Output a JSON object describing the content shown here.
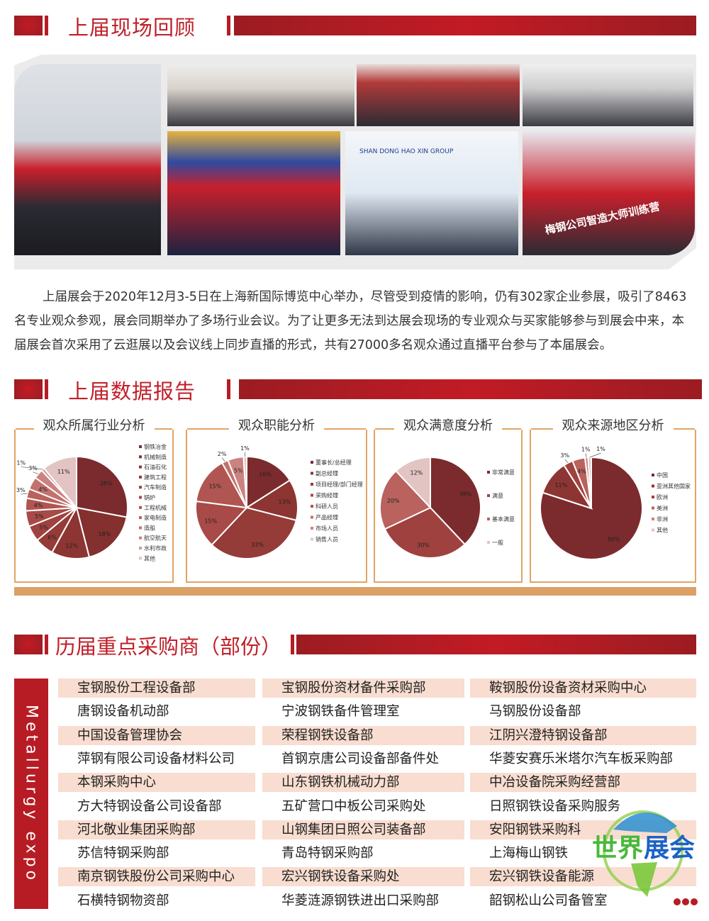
{
  "sections": {
    "review_title": "上届现场回顾",
    "data_title": "上届数据报告",
    "buyers_title": "历届重点采购商（部份）"
  },
  "photos": {
    "booth_sign": "SHAN DONG HAO XIN GROUP",
    "banner": "梅钢公司智造大师训练营"
  },
  "paragraph": "上届展会于2020年12月3-5日在上海新国际博览中心举办，尽管受到疫情的影响，仍有302家企业参展，吸引了8463名专业观众参观，展会同期举办了多场行业会议。为了让更多无法到达展会现场的专业观众与买家能够参与到展会中来，本届展会首次采用了云逛展以及会议线上同步直播的形式，共有27000多名观众通过直播平台参与了本届展会。",
  "chart_data": [
    {
      "type": "pie",
      "title": "观众所属行业分析",
      "categories": [
        "钢铁冶金",
        "机械制造",
        "石油石化",
        "建筑工程",
        "汽车制造",
        "锅炉",
        "工程机械",
        "家电制造",
        "造船",
        "航空航天",
        "水利市政",
        "其他"
      ],
      "values": [
        28,
        18,
        12,
        6,
        5,
        5,
        4,
        3,
        4,
        3,
        1,
        11
      ],
      "unit": "%",
      "legend": "right"
    },
    {
      "type": "pie",
      "title": "观众职能分析",
      "categories": [
        "董事长/总经理",
        "副总经理",
        "项目经理/部门经理",
        "采购经理",
        "科研人员",
        "产品经理",
        "市场人员",
        "销售人员"
      ],
      "values": [
        16,
        13,
        33,
        15,
        15,
        2,
        5,
        1
      ],
      "unit": "%",
      "legend": "right"
    },
    {
      "type": "pie",
      "title": "观众满意度分析",
      "categories": [
        "非常满意",
        "满意",
        "基本满意",
        "一般"
      ],
      "values": [
        38,
        30,
        20,
        12
      ],
      "unit": "%",
      "legend": "right"
    },
    {
      "type": "pie",
      "title": "观众来源地区分析",
      "categories": [
        "中国",
        "亚洲其他国家",
        "欧洲",
        "美洲",
        "非洲",
        "其他"
      ],
      "values": [
        80,
        11,
        3,
        4,
        1,
        1
      ],
      "unit": "%",
      "legend": "right"
    }
  ],
  "colors": {
    "accent": "#b71c25",
    "row_alt": "#f8ddd0",
    "border": "#e3a463",
    "pie": [
      "#7b2b2d",
      "#83302f",
      "#8c3533",
      "#953b38",
      "#9f423f",
      "#a84a47",
      "#b05551",
      "#b9625e",
      "#c3716d",
      "#cb8280",
      "#d59b99",
      "#e2c4c3"
    ]
  },
  "buyers": {
    "side_label": "Metallurgy expo",
    "rows": [
      [
        "宝钢股份工程设备部",
        "宝钢股份资材备件采购部",
        "鞍钢股份设备资材采购中心"
      ],
      [
        "唐钢设备机动部",
        "宁波钢铁备件管理室",
        "马钢股份设备部"
      ],
      [
        "中国设备管理协会",
        "荣程钢铁设备部",
        "江阴兴澄特钢设备部"
      ],
      [
        "萍钢有限公司设备材料公司",
        "首钢京唐公司设备部备件处",
        "华菱安赛乐米塔尔汽车板采购部"
      ],
      [
        "本钢采购中心",
        "山东钢铁机械动力部",
        "中冶设备院采购经营部"
      ],
      [
        "方大特钢设备公司设备部",
        "五矿营口中板公司采购处",
        "日照钢铁设备采购服务"
      ],
      [
        "河北敬业集团采购部",
        "山钢集团日照公司装备部",
        "安阳钢铁采购科"
      ],
      [
        "苏信特钢采购部",
        "青岛特钢采购部",
        "上海梅山钢铁"
      ],
      [
        "南京钢铁股份公司采购中心",
        "宏兴钢铁设备采购处",
        "宏兴钢铁设备能源"
      ],
      [
        "石横特钢物资部",
        "华菱涟源钢铁进出口采购部",
        "韶钢松山公司备管室"
      ]
    ]
  },
  "logo": {
    "text": "世界展会"
  }
}
